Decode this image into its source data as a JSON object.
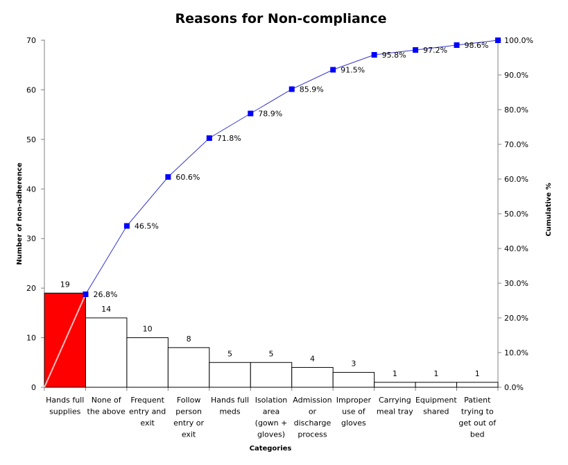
{
  "chart_data": {
    "type": "bar",
    "title": "Reasons for Non-compliance",
    "xlabel": "Categories",
    "ylabel": "Number of non-adherence",
    "y2label": "Cumulative %",
    "ylim": [
      0,
      70
    ],
    "y2lim": [
      0,
      100
    ],
    "yticks": [
      "0",
      "10",
      "20",
      "30",
      "40",
      "50",
      "60",
      "70"
    ],
    "y2ticks": [
      "0.0%",
      "10.0%",
      "20.0%",
      "30.0%",
      "40.0%",
      "50.0%",
      "60.0%",
      "70.0%",
      "80.0%",
      "90.0%",
      "100.0%"
    ],
    "categories": [
      [
        "Hands full",
        "supplies"
      ],
      [
        "None of",
        "the above"
      ],
      [
        "Frequent",
        "entry and",
        "exit"
      ],
      [
        "Follow",
        "person",
        "entry or",
        "exit"
      ],
      [
        "Hands full",
        "meds"
      ],
      [
        "Isolation",
        "area",
        "(gown +",
        "gloves)"
      ],
      [
        "Admission",
        "or",
        "discharge",
        "process"
      ],
      [
        "Improper",
        "use of",
        "gloves"
      ],
      [
        "Carrying",
        "meal tray"
      ],
      [
        "Equipment",
        "shared"
      ],
      [
        "Patient",
        "trying to",
        "get out of",
        "bed"
      ]
    ],
    "values": [
      19,
      14,
      10,
      8,
      5,
      5,
      4,
      3,
      1,
      1,
      1
    ],
    "value_labels": [
      "19",
      "14",
      "10",
      "8",
      "5",
      "5",
      "4",
      "3",
      "1",
      "1",
      "1"
    ],
    "cumulative": [
      26.8,
      46.5,
      60.6,
      71.8,
      78.9,
      85.9,
      91.5,
      95.8,
      97.2,
      98.6,
      100.0
    ],
    "cumulative_labels": [
      "26.8%",
      "46.5%",
      "60.6%",
      "71.8%",
      "78.9%",
      "85.9%",
      "91.5%",
      "95.8%",
      "97.2%",
      "98.6%",
      ""
    ],
    "colors": {
      "highlight_bar": "#ff0000",
      "bar": "#ffffff",
      "bar_stroke": "#000000",
      "line": "#3333cc",
      "marker": "#0000ff"
    },
    "grid": false,
    "legend": "none"
  }
}
